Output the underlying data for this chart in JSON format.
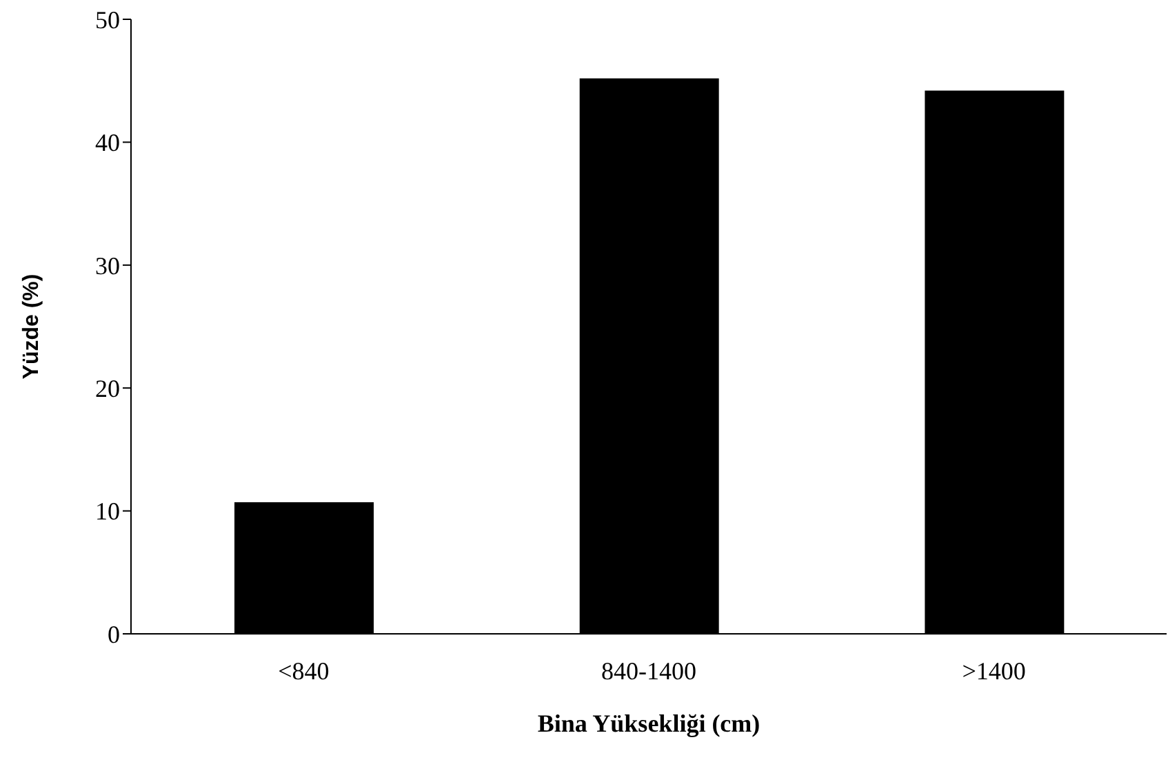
{
  "chart_data": {
    "type": "bar",
    "xlabel": "Bina Yüksekliği (cm)",
    "ylabel": "Yüzde (%)",
    "categories": [
      "<840",
      "840-1400",
      ">1400"
    ],
    "values": [
      10.7,
      45.2,
      44.2
    ],
    "color": "#000000",
    "ylim": [
      0,
      50
    ],
    "yticks": [
      0,
      10,
      20,
      30,
      40,
      50
    ],
    "grid": false,
    "legend": false
  }
}
